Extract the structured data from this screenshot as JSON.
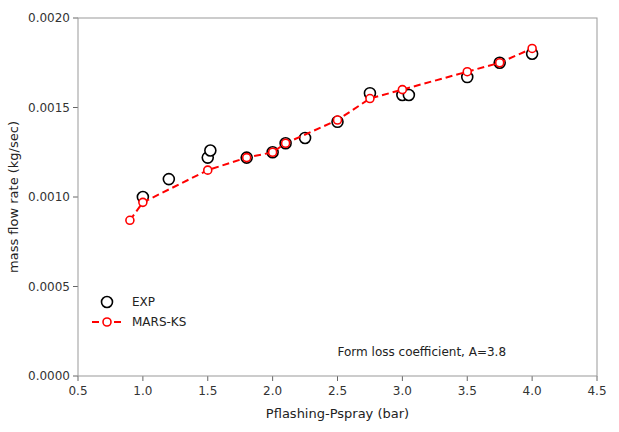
{
  "chart_data": {
    "type": "line",
    "xlabel": "Pflashing-Pspray (bar)",
    "ylabel": "mass flow rate (kg/sec)",
    "xlim": [
      0.5,
      4.5
    ],
    "ylim": [
      0.0,
      0.002
    ],
    "xticks": [
      0.5,
      {
        "value": 1.0,
        "label": "1.0"
      },
      1.5,
      {
        "value": 2.0,
        "label": "2.0"
      },
      2.5,
      {
        "value": 3.0,
        "label": "3.0"
      },
      3.5,
      {
        "value": 4.0,
        "label": "4.0"
      },
      4.5
    ],
    "yticks": [
      {
        "value": 0.0,
        "label": "0.0000"
      },
      {
        "value": 0.0005,
        "label": "0.0005"
      },
      {
        "value": 0.001,
        "label": "0.0010"
      },
      {
        "value": 0.0015,
        "label": "0.0015"
      },
      {
        "value": 0.002,
        "label": "0.0020"
      }
    ],
    "series": [
      {
        "name": "EXP",
        "type": "scatter",
        "color": "black",
        "marker": "circle",
        "x": [
          1.0,
          1.2,
          1.5,
          1.52,
          1.8,
          2.0,
          2.1,
          2.25,
          2.5,
          2.75,
          3.0,
          3.05,
          3.5,
          3.75,
          4.0
        ],
        "values": [
          0.001,
          0.0011,
          0.00122,
          0.00126,
          0.00122,
          0.00125,
          0.0013,
          0.00133,
          0.00142,
          0.00158,
          0.00157,
          0.00157,
          0.00167,
          0.00175,
          0.0018
        ]
      },
      {
        "name": "MARS-KS",
        "type": "line",
        "color": "#ff0000",
        "marker": "circle",
        "line_style": "dashed",
        "x": [
          0.9,
          1.0,
          1.5,
          1.8,
          2.0,
          2.1,
          2.5,
          2.75,
          3.0,
          3.5,
          3.75,
          4.0
        ],
        "values": [
          0.00087,
          0.00097,
          0.00115,
          0.00122,
          0.00125,
          0.0013,
          0.00143,
          0.00155,
          0.0016,
          0.0017,
          0.00175,
          0.00183
        ]
      }
    ],
    "annotations": [
      {
        "text": "Form loss coefficient, A=3.8",
        "x": 2.5,
        "y": 0.00011
      }
    ],
    "legend": "lower left",
    "grid": false
  }
}
